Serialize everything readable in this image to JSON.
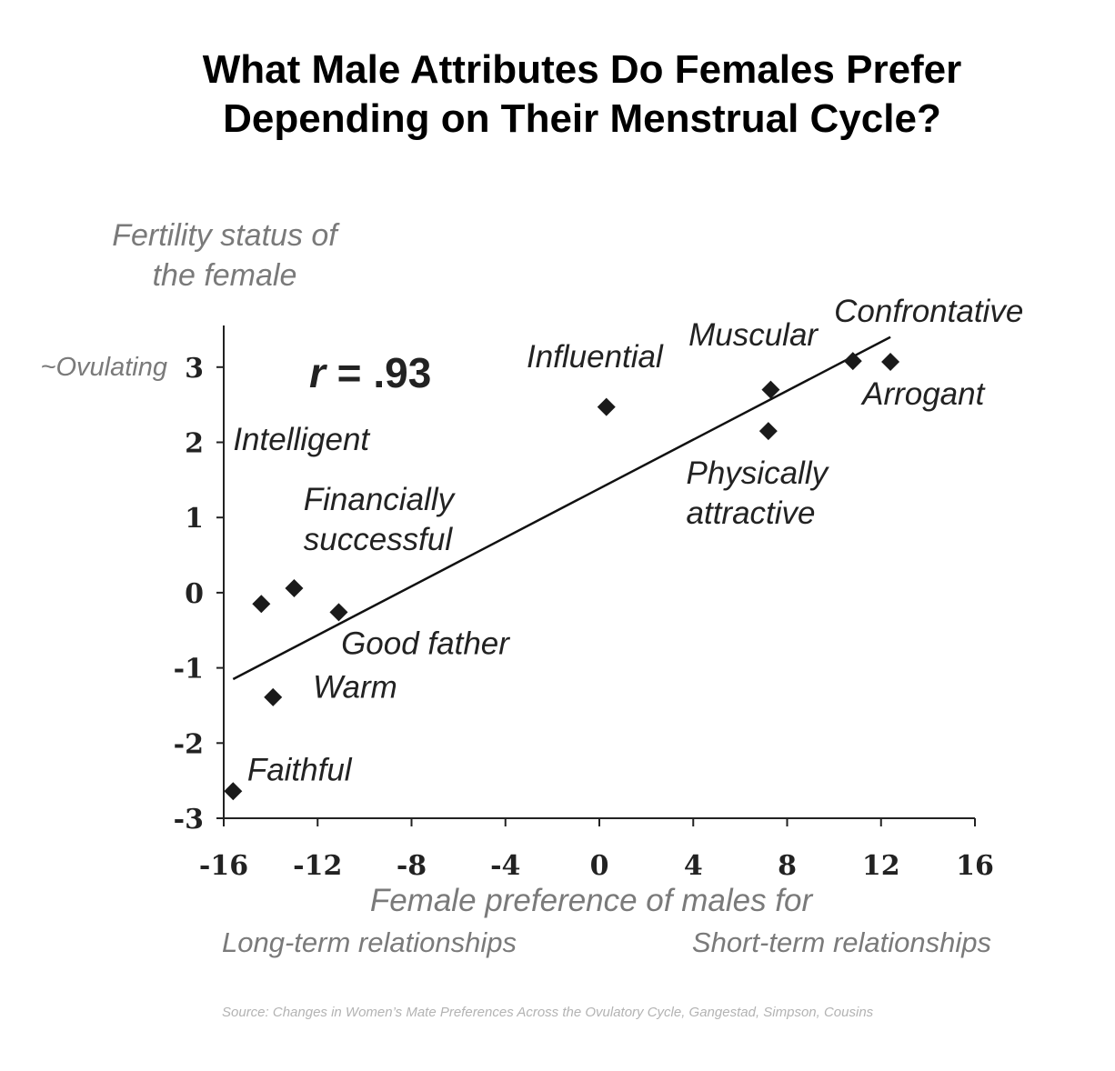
{
  "title_lines": [
    "What Male Attributes Do Females Prefer",
    "Depending on Their Menstrual Cycle?"
  ],
  "source": "Source: Changes in Women’s Mate Preferences Across the Ovulatory Cycle, Gangestad, Simpson, Cousins",
  "chart_data": {
    "type": "scatter",
    "ylabel_lines": [
      "Fertility status of",
      "the female"
    ],
    "ylabel_note": "~Ovulating",
    "xlabel": "Female preference of males for",
    "x_left_note": "Long-term relationships",
    "x_right_note": "Short-term relationships",
    "correlation_label": "r = .93",
    "correlation_r": "r",
    "correlation_value": " = .93",
    "xlim": [
      -16,
      16
    ],
    "ylim": [
      -3,
      3.5
    ],
    "x_ticks": [
      -16,
      -12,
      -8,
      -4,
      0,
      4,
      8,
      12,
      16
    ],
    "y_ticks": [
      -3,
      -2,
      -1,
      0,
      1,
      2,
      3
    ],
    "trendline": {
      "x": [
        -15.6,
        12.4
      ],
      "y": [
        -1.15,
        3.4
      ]
    },
    "grid": false,
    "points": [
      {
        "x": -14.4,
        "y": -0.15
      },
      {
        "x": -13.0,
        "y": 0.06
      },
      {
        "x": -11.1,
        "y": -0.26
      },
      {
        "x": -13.9,
        "y": -1.39
      },
      {
        "x": -15.6,
        "y": -2.64
      },
      {
        "x": 0.3,
        "y": 2.47
      },
      {
        "x": 7.3,
        "y": 2.7
      },
      {
        "x": 7.2,
        "y": 2.15
      },
      {
        "x": 10.8,
        "y": 3.08
      },
      {
        "x": 12.4,
        "y": 3.07
      }
    ],
    "labels": [
      {
        "lines": [
          "Intelligent"
        ],
        "x": -15.6,
        "y": 1.9
      },
      {
        "lines": [
          "Financially",
          "successful"
        ],
        "x": -12.6,
        "y": 1.1
      },
      {
        "lines": [
          "Good father"
        ],
        "x": -11.0,
        "y": -0.82
      },
      {
        "lines": [
          "Warm"
        ],
        "x": -12.2,
        "y": -1.4
      },
      {
        "lines": [
          "Faithful"
        ],
        "x": -15.0,
        "y": -2.5
      },
      {
        "lines": [
          "Influential"
        ],
        "x": -3.1,
        "y": 3.0
      },
      {
        "lines": [
          "Muscular"
        ],
        "x": 3.8,
        "y": 3.29
      },
      {
        "lines": [
          "Confrontative"
        ],
        "x": 10.0,
        "y": 3.6
      },
      {
        "lines": [
          "Arrogant"
        ],
        "x": 11.2,
        "y": 2.5
      },
      {
        "lines": [
          "Physically",
          "attractive"
        ],
        "x": 3.7,
        "y": 1.45
      }
    ]
  }
}
